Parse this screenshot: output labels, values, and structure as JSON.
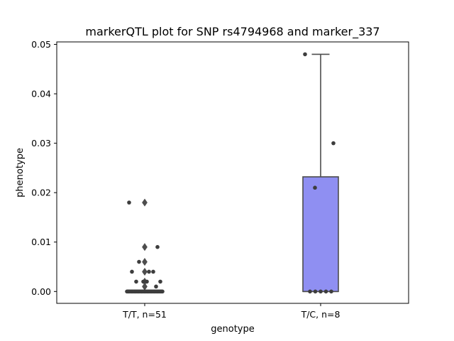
{
  "chart_data": {
    "type": "box",
    "title": "markerQTL plot for SNP rs4794968 and marker_337",
    "xlabel": "genotype",
    "ylabel": "phenotype",
    "ylim": [
      -0.0024,
      0.0505
    ],
    "yticks": [
      "0.00",
      "0.01",
      "0.02",
      "0.03",
      "0.04",
      "0.05"
    ],
    "ytick_values": [
      0,
      0.01,
      0.02,
      0.03,
      0.04,
      0.05
    ],
    "categories": [
      "T/T, n=51",
      "T/C, n=8"
    ],
    "boxes": [
      {
        "category": "T/T, n=51",
        "q1": 0.0,
        "median": 0.0,
        "q3": 0.0,
        "whisker_low": 0.0,
        "whisker_high": 0.0,
        "outliers": [
          0.018,
          0.009,
          0.006,
          0.004,
          0.002,
          0.001
        ]
      },
      {
        "category": "T/C, n=8",
        "q1": 0.0,
        "median": 0.0,
        "q3": 0.0232,
        "whisker_low": 0.0,
        "whisker_high": 0.048,
        "outliers": []
      }
    ],
    "points": [
      {
        "category": "T/T, n=51",
        "values": [
          0.018,
          0.009,
          0.006,
          0.004,
          0.004,
          0.004,
          0.002,
          0.002,
          0.002,
          0.002,
          0.001,
          0,
          0,
          0,
          0,
          0,
          0,
          0,
          0,
          0,
          0,
          0,
          0,
          0,
          0,
          0,
          0,
          0,
          0,
          0,
          0,
          0,
          0,
          0,
          0,
          0,
          0,
          0,
          0,
          0,
          0,
          0,
          0,
          0,
          0,
          0,
          0,
          0,
          0,
          0,
          0
        ]
      },
      {
        "category": "T/C, n=8",
        "values": [
          0.048,
          0.03,
          0.021,
          0,
          0,
          0,
          0,
          0
        ]
      }
    ],
    "box_colors": [
      "#8f8ff2",
      "#8f8ff2"
    ],
    "point_color": "#3d3d3d",
    "grid": false
  }
}
